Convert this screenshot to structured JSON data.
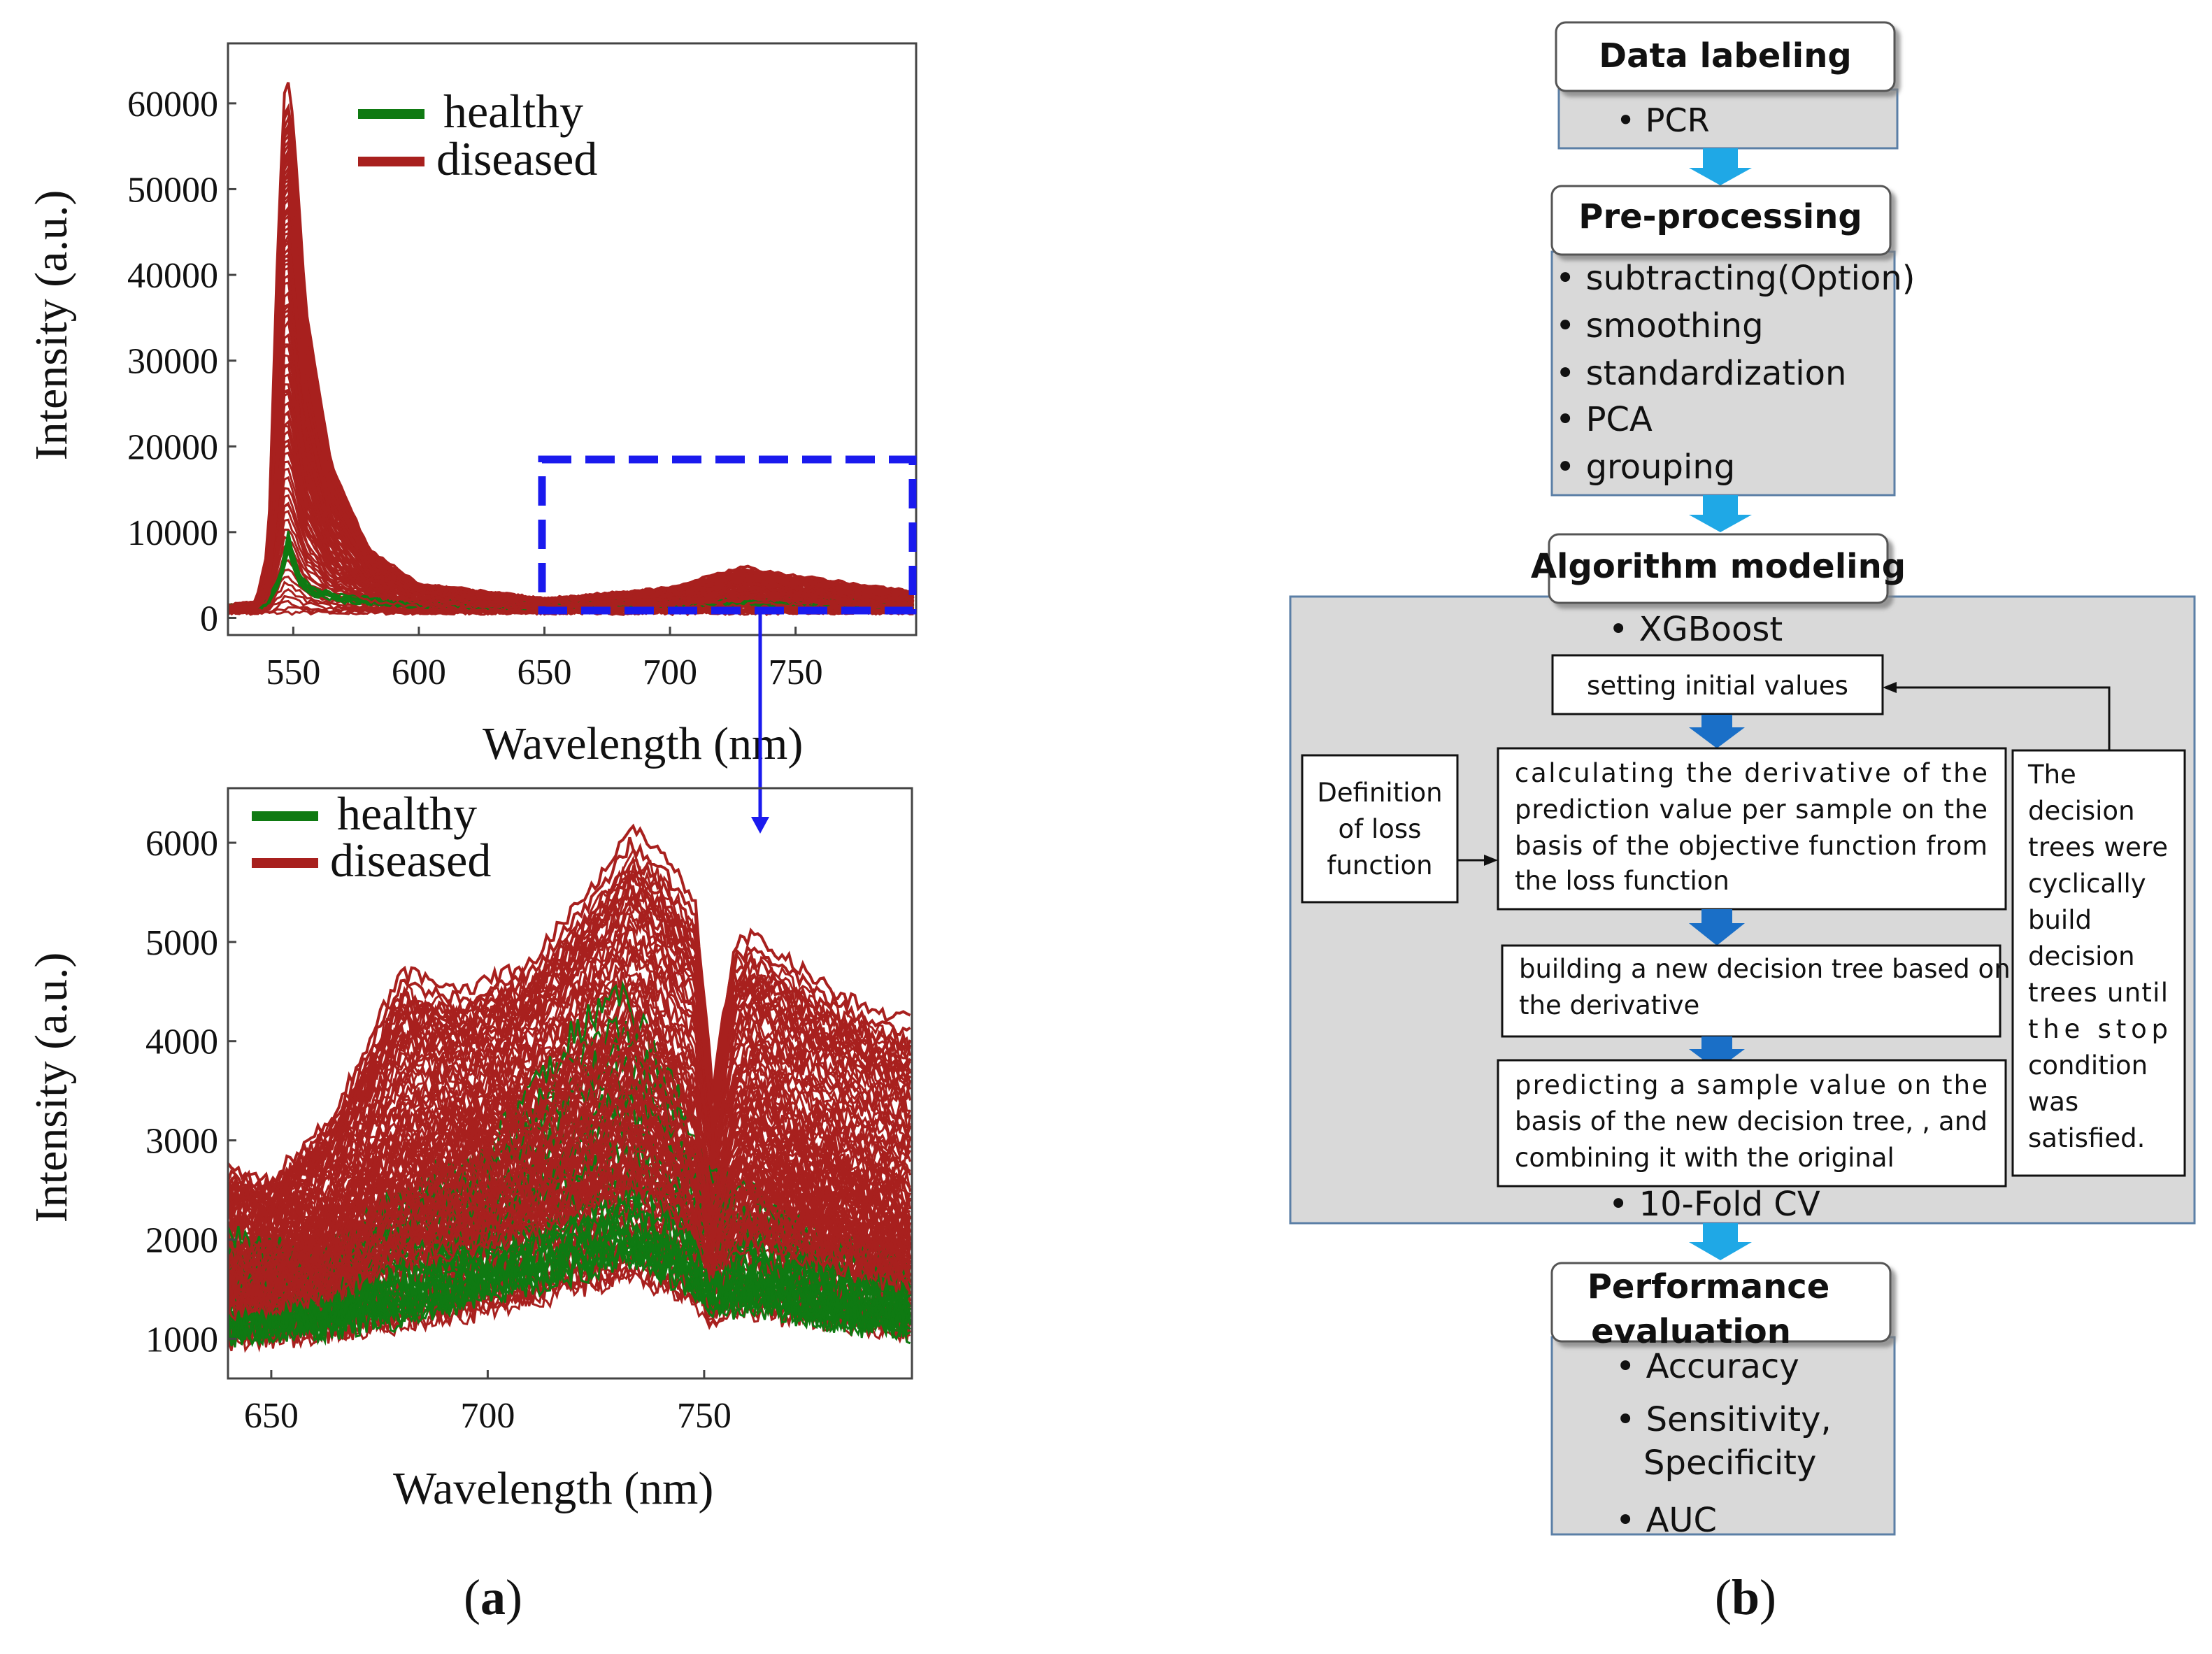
{
  "panel_a": {
    "caption": "a",
    "top_chart": {
      "type": "line",
      "xlabel": "Wavelength (nm)",
      "ylabel": "Intensity (a.u.)",
      "xlim": [
        524,
        798
      ],
      "ylim": [
        -2000,
        67000
      ],
      "x_ticks": [
        550,
        600,
        650,
        700,
        750
      ],
      "y_ticks": [
        0,
        10000,
        20000,
        30000,
        40000,
        50000,
        60000
      ],
      "legend": [
        {
          "label": "healthy",
          "color": "#0f7a12"
        },
        {
          "label": "diseased",
          "color": "#a8201e"
        }
      ],
      "series": [
        {
          "name": "healthy",
          "x": [
            525,
            535,
            540,
            545,
            548,
            552,
            558,
            570,
            600,
            650,
            700,
            750,
            798
          ],
          "values": [
            1200,
            1300,
            1800,
            5000,
            9000,
            4500,
            3000,
            2200,
            1600,
            1500,
            1700,
            1900,
            1400
          ]
        },
        {
          "name": "diseased (max)",
          "x": [
            525,
            535,
            540,
            544,
            547,
            550,
            555,
            565,
            580,
            600,
            650,
            700,
            730,
            735,
            760,
            798
          ],
          "values": [
            1500,
            1800,
            8000,
            45000,
            64500,
            58000,
            36000,
            18000,
            8000,
            4000,
            2200,
            3500,
            6000,
            5500,
            4500,
            3000
          ]
        },
        {
          "name": "diseased (median)",
          "x": [
            525,
            535,
            540,
            544,
            547,
            550,
            555,
            565,
            580,
            600,
            650,
            700,
            735,
            760,
            798
          ],
          "values": [
            1300,
            1500,
            5000,
            28000,
            42000,
            36000,
            22000,
            11000,
            5000,
            2800,
            1800,
            2500,
            3800,
            2800,
            2000
          ]
        }
      ],
      "zoom_region": {
        "x": [
          650,
          798
        ],
        "y": [
          0,
          18000
        ]
      }
    },
    "bottom_chart": {
      "type": "line",
      "xlabel": "Wavelength (nm)",
      "ylabel": "Intensity (a.u.)",
      "xlim": [
        640,
        798
      ],
      "ylim": [
        600,
        6550
      ],
      "x_ticks": [
        650,
        700,
        750
      ],
      "y_ticks": [
        1000,
        2000,
        3000,
        4000,
        5000,
        6000
      ],
      "legend": [
        {
          "label": "healthy",
          "color": "#0f7a12"
        },
        {
          "label": "diseased",
          "color": "#a8201e"
        }
      ],
      "series": [
        {
          "name": "diseased (max)",
          "x": [
            640,
            650,
            665,
            680,
            695,
            710,
            725,
            733,
            740,
            748,
            752,
            757,
            762,
            770,
            780,
            790,
            798
          ],
          "values": [
            2700,
            2600,
            3300,
            4700,
            4500,
            4800,
            5600,
            6150,
            5900,
            5400,
            3500,
            5000,
            5050,
            4800,
            4500,
            4300,
            4200
          ]
        },
        {
          "name": "diseased (median)",
          "x": [
            640,
            650,
            665,
            680,
            695,
            710,
            725,
            733,
            740,
            748,
            752,
            757,
            762,
            770,
            780,
            790,
            798
          ],
          "values": [
            1700,
            1750,
            2000,
            2700,
            2800,
            3000,
            3400,
            3600,
            3400,
            2900,
            2200,
            2800,
            2900,
            2700,
            2500,
            2300,
            2200
          ]
        },
        {
          "name": "diseased (min)",
          "x": [
            640,
            660,
            680,
            700,
            720,
            733,
            745,
            752,
            760,
            780,
            798
          ],
          "values": [
            1000,
            1050,
            1150,
            1300,
            1500,
            1650,
            1450,
            1200,
            1300,
            1150,
            1050
          ]
        },
        {
          "name": "healthy (max)",
          "x": [
            640,
            660,
            680,
            700,
            720,
            730,
            740,
            752,
            760,
            780,
            798
          ],
          "values": [
            1900,
            1600,
            2300,
            2700,
            3900,
            4300,
            3600,
            2500,
            2300,
            1800,
            1600
          ]
        },
        {
          "name": "healthy (median)",
          "x": [
            640,
            660,
            680,
            700,
            720,
            733,
            745,
            752,
            760,
            780,
            798
          ],
          "values": [
            1200,
            1250,
            1400,
            1650,
            1900,
            2050,
            1800,
            1500,
            1550,
            1350,
            1250
          ]
        }
      ]
    }
  },
  "panel_b": {
    "caption": "b",
    "stages": {
      "labeling": {
        "title": "Data labeling",
        "items": [
          "PCR"
        ]
      },
      "preprocessing": {
        "title": "Pre-processing",
        "items": [
          "subtracting(Option)",
          "smoothing",
          "standardization",
          "PCA",
          "grouping"
        ]
      },
      "modeling": {
        "title": "Algorithm modeling",
        "item_top": "XGBoost",
        "item_bottom": "10-Fold CV",
        "setting": "setting initial values",
        "loss": [
          "Definition",
          "of loss",
          "function"
        ],
        "derivative": [
          "calculating the derivative of the",
          "prediction value per sample on the",
          "basis of the objective function from",
          "the loss function"
        ],
        "building": [
          "building a new decision tree based on",
          "the derivative"
        ],
        "predicting": [
          "predicting a sample value on the",
          "basis of the new decision tree, , and",
          "combining it with the original"
        ],
        "cycle": [
          "The",
          "decision",
          "trees were",
          "cyclically",
          "build",
          "decision",
          "trees until",
          "the stop",
          "condition",
          "was",
          "satisfied."
        ]
      },
      "evaluation": {
        "title_lines": [
          "Performance",
          "evaluation"
        ],
        "items": [
          "Accuracy",
          "Sensitivity,",
          "Specificity",
          "AUC"
        ]
      }
    }
  }
}
